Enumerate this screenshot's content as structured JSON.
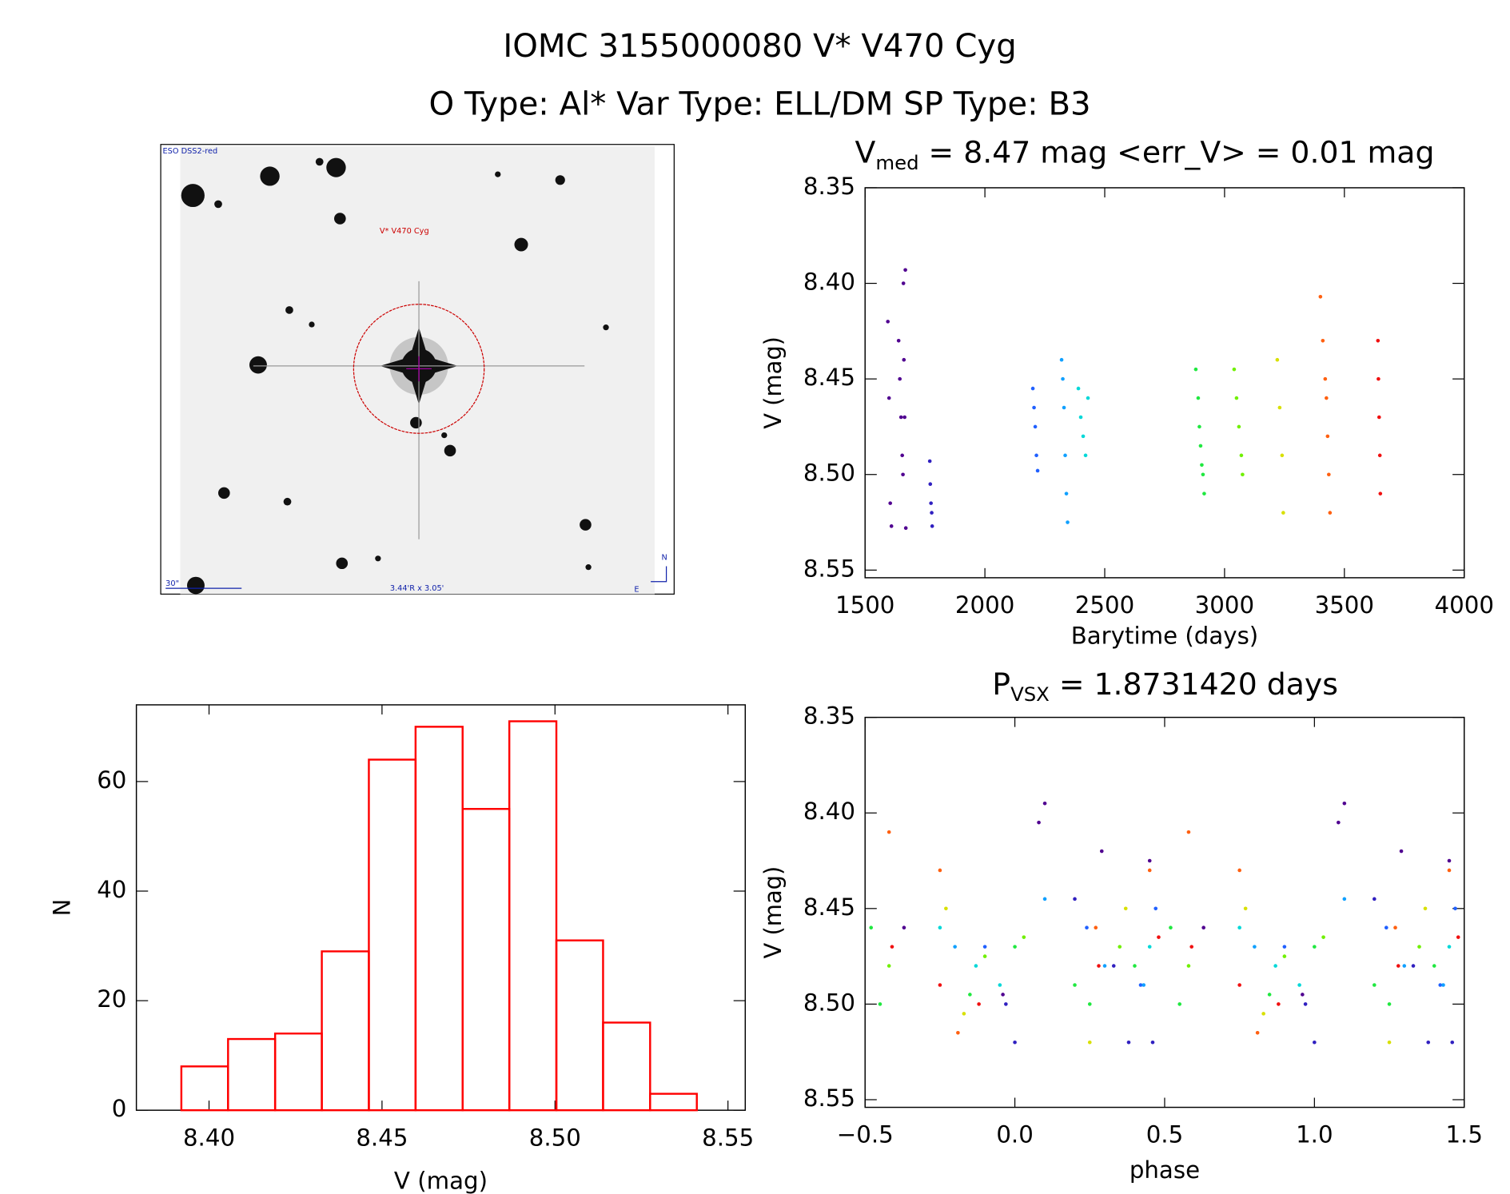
{
  "header": {
    "title": "IOMC 3155000080   V* V470 Cyg",
    "subtitle": "O Type: Al*  Var Type: ELL/DM  SP Type: B3"
  },
  "image_panel": {
    "survey": "ESO DSS2-red",
    "target": "V* V470 Cyg",
    "scale": "30\"",
    "size": "3.44'R x 3.05'",
    "north": "N",
    "east": "E"
  },
  "chart_data": [
    {
      "type": "scatter",
      "title": {
        "main": "V",
        "sub": "med",
        "rest": " = 8.47 mag <err_V> = 0.01 mag"
      },
      "x_label": "Barytime (days)",
      "y_label": "V (mag)",
      "xlim": [
        1500,
        4000
      ],
      "xticks": [
        1500,
        2000,
        2500,
        3000,
        3500,
        4000
      ],
      "ylim": [
        8.554,
        8.35
      ],
      "yticks": [
        8.35,
        {
          "value": 8.4,
          "label": "8.40"
        },
        8.45,
        {
          "value": 8.5,
          "label": "8.50"
        },
        8.55
      ],
      "series": [
        {
          "color": "#500090",
          "x": [
            1595,
            1600,
            1605,
            1610,
            1640,
            1645,
            1650,
            1655,
            1658,
            1660,
            1662,
            1665,
            1668,
            1670
          ],
          "values": [
            8.42,
            8.46,
            8.515,
            8.527,
            8.43,
            8.45,
            8.47,
            8.49,
            8.5,
            8.4,
            8.44,
            8.47,
            8.393,
            8.528
          ]
        },
        {
          "color": "#3020c0",
          "x": [
            1770,
            1772,
            1775,
            1778,
            1780
          ],
          "values": [
            8.493,
            8.505,
            8.515,
            8.52,
            8.527
          ]
        },
        {
          "color": "#2060ff",
          "x": [
            2200,
            2205,
            2210,
            2215,
            2220
          ],
          "values": [
            8.455,
            8.465,
            8.475,
            8.49,
            8.498
          ]
        },
        {
          "color": "#10a0ff",
          "x": [
            2320,
            2325,
            2330,
            2335,
            2340,
            2345
          ],
          "values": [
            8.44,
            8.45,
            8.465,
            8.49,
            8.51,
            8.525
          ]
        },
        {
          "color": "#00d8d8",
          "x": [
            2390,
            2400,
            2410,
            2420,
            2430
          ],
          "values": [
            8.455,
            8.47,
            8.48,
            8.49,
            8.46
          ]
        },
        {
          "color": "#20e840",
          "x": [
            2880,
            2890,
            2895,
            2900,
            2905,
            2910,
            2915
          ],
          "values": [
            8.445,
            8.46,
            8.475,
            8.485,
            8.495,
            8.5,
            8.51
          ]
        },
        {
          "color": "#70f000",
          "x": [
            3040,
            3050,
            3060,
            3070,
            3075
          ],
          "values": [
            8.445,
            8.46,
            8.475,
            8.49,
            8.5
          ]
        },
        {
          "color": "#d8e000",
          "x": [
            3220,
            3230,
            3240,
            3245
          ],
          "values": [
            8.44,
            8.465,
            8.49,
            8.52
          ]
        },
        {
          "color": "#ff6010",
          "x": [
            3400,
            3410,
            3420,
            3425,
            3430,
            3435,
            3440
          ],
          "values": [
            8.407,
            8.43,
            8.45,
            8.46,
            8.48,
            8.5,
            8.52
          ]
        },
        {
          "color": "#f01010",
          "x": [
            3640,
            3642,
            3645,
            3648,
            3650
          ],
          "values": [
            8.43,
            8.45,
            8.47,
            8.49,
            8.51
          ]
        }
      ]
    },
    {
      "type": "scatter",
      "title": {
        "main": "P",
        "sub": "VSX",
        "rest": " = 1.8731420 days"
      },
      "x_label": "phase",
      "y_label": "V (mag)",
      "xlim": [
        -0.5,
        1.5
      ],
      "xticks": [
        {
          "value": -0.5,
          "label": "−0.5"
        },
        {
          "value": 0,
          "label": "0.0"
        },
        0.5,
        {
          "value": 1,
          "label": "1.0"
        },
        1.5
      ],
      "ylim": [
        8.554,
        8.35
      ],
      "yticks": [
        8.35,
        {
          "value": 8.4,
          "label": "8.40"
        },
        8.45,
        {
          "value": 8.5,
          "label": "8.50"
        },
        8.55
      ],
      "series": [
        {
          "color": "#500090",
          "x": [
            -0.37,
            -0.04,
            0.08,
            0.1,
            0.29,
            0.45,
            0.63,
            0.96,
            1.08,
            1.1,
            1.29,
            1.45
          ],
          "values": [
            8.46,
            8.495,
            8.405,
            8.395,
            8.42,
            8.425,
            8.46,
            8.495,
            8.405,
            8.395,
            8.42,
            8.425
          ]
        },
        {
          "color": "#3020c0",
          "x": [
            -0.03,
            0.0,
            0.2,
            0.33,
            0.38,
            0.46,
            0.97,
            1.0,
            1.2,
            1.33,
            1.38,
            1.46
          ],
          "values": [
            8.5,
            8.52,
            8.445,
            8.48,
            8.52,
            8.52,
            8.5,
            8.52,
            8.445,
            8.48,
            8.52,
            8.52
          ]
        },
        {
          "color": "#2060ff",
          "x": [
            -0.1,
            0.24,
            0.42,
            0.47,
            0.9,
            1.24,
            1.42,
            1.47
          ],
          "values": [
            8.47,
            8.46,
            8.49,
            8.45,
            8.47,
            8.46,
            8.49,
            8.45
          ]
        },
        {
          "color": "#10a0ff",
          "x": [
            -0.2,
            0.1,
            0.3,
            0.43,
            0.8,
            1.1,
            1.3,
            1.43
          ],
          "values": [
            8.47,
            8.445,
            8.48,
            8.49,
            8.47,
            8.445,
            8.48,
            8.49
          ]
        },
        {
          "color": "#00d8d8",
          "x": [
            -0.25,
            -0.13,
            -0.05,
            0.45,
            0.75,
            0.87,
            0.95,
            1.45
          ],
          "values": [
            8.46,
            8.48,
            8.49,
            8.47,
            8.46,
            8.48,
            8.49,
            8.47
          ]
        },
        {
          "color": "#20e840",
          "x": [
            -0.48,
            -0.45,
            -0.15,
            0.0,
            0.2,
            0.25,
            0.4,
            0.52,
            0.55,
            0.85,
            1.0,
            1.2,
            1.25,
            1.4
          ],
          "values": [
            8.46,
            8.5,
            8.495,
            8.47,
            8.49,
            8.5,
            8.48,
            8.46,
            8.5,
            8.495,
            8.47,
            8.49,
            8.5,
            8.48
          ]
        },
        {
          "color": "#70f000",
          "x": [
            -0.42,
            -0.1,
            0.03,
            0.35,
            0.58,
            0.9,
            1.03,
            1.35
          ],
          "values": [
            8.48,
            8.475,
            8.465,
            8.47,
            8.48,
            8.475,
            8.465,
            8.47
          ]
        },
        {
          "color": "#d8e000",
          "x": [
            -0.23,
            -0.17,
            0.25,
            0.37,
            0.77,
            0.83,
            1.25,
            1.37
          ],
          "values": [
            8.45,
            8.505,
            8.52,
            8.45,
            8.45,
            8.505,
            8.52,
            8.45
          ]
        },
        {
          "color": "#ff6010",
          "x": [
            -0.42,
            -0.25,
            -0.19,
            0.27,
            0.45,
            0.58,
            0.75,
            0.81,
            1.27,
            1.45
          ],
          "values": [
            8.41,
            8.43,
            8.515,
            8.46,
            8.43,
            8.41,
            8.43,
            8.515,
            8.46,
            8.43
          ]
        },
        {
          "color": "#f01010",
          "x": [
            -0.41,
            -0.25,
            -0.12,
            0.28,
            0.48,
            0.59,
            0.75,
            0.88,
            1.28,
            1.48
          ],
          "values": [
            8.47,
            8.49,
            8.5,
            8.48,
            8.465,
            8.47,
            8.49,
            8.5,
            8.48,
            8.465
          ]
        }
      ]
    },
    {
      "type": "histogram",
      "x_label": "V (mag)",
      "y_label": "N",
      "color": "#ff0000",
      "bins": [
        8.392,
        8.4055,
        8.4191,
        8.4326,
        8.4462,
        8.4597,
        8.4733,
        8.4868,
        8.5004,
        8.5139,
        8.5275,
        8.541
      ],
      "values": [
        8,
        13,
        14,
        29,
        64,
        70,
        55,
        71,
        31,
        16,
        3
      ],
      "xlim": [
        8.379,
        8.555
      ],
      "xticks": [
        {
          "value": 8.4,
          "label": "8.40"
        },
        8.45,
        {
          "value": 8.5,
          "label": "8.50"
        },
        8.55
      ],
      "ylim": [
        0,
        74
      ],
      "yticks": [
        0,
        20,
        40,
        60
      ]
    }
  ]
}
